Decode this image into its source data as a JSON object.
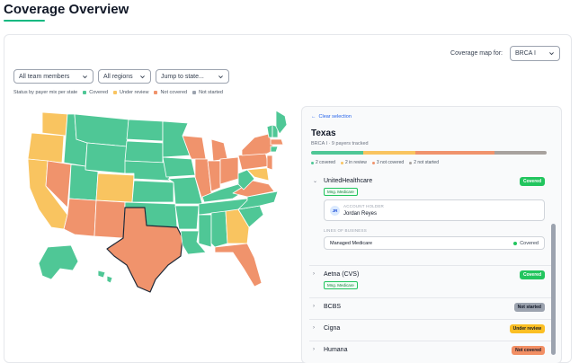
{
  "page": {
    "title": "Coverage Overview"
  },
  "coverage_map": {
    "label": "Coverage map for:",
    "selected": "BRCA I"
  },
  "filters": {
    "team": "All team members",
    "region": "All regions",
    "jump": "Jump to state..."
  },
  "legend": {
    "caption": "Status by payer mix per state",
    "items": [
      {
        "label": "Covered",
        "color": "#4fc796"
      },
      {
        "label": "Under review",
        "color": "#f9c460"
      },
      {
        "label": "Not covered",
        "color": "#f0936c"
      },
      {
        "label": "Not started",
        "color": "#9ca3af"
      }
    ]
  },
  "panel": {
    "clear_label": "Clear selection",
    "state_name": "Texas",
    "subtitle": "BRCA I · 9 payers tracked",
    "summary": [
      {
        "count": 2,
        "label": "2 covered",
        "color": "#4fc796"
      },
      {
        "count": 2,
        "label": "2 in review",
        "color": "#f9c460"
      },
      {
        "count": 3,
        "label": "3 not covered",
        "color": "#f0936c"
      },
      {
        "count": 2,
        "label": "2 not started",
        "color": "#a8a29e"
      }
    ],
    "payers": [
      {
        "name": "UnitedHealthcare",
        "status": "Covered",
        "status_class": "b-covered",
        "expanded": true,
        "tag": "Mng. Medicare",
        "holder_label": "ACCOUNT HOLDER",
        "holder_initials": "JR",
        "holder_name": "Jordan Reyes",
        "lob_label": "LINES OF BUSINESS",
        "lob_name": "Managed Medicare",
        "lob_status": "Covered"
      },
      {
        "name": "Aetna (CVS)",
        "status": "Covered",
        "status_class": "b-covered",
        "expanded": false,
        "tag": "Mng. Medicare"
      },
      {
        "name": "BCBS",
        "status": "Not started",
        "status_class": "b-notstarted",
        "expanded": false
      },
      {
        "name": "Cigna",
        "status": "Under review",
        "status_class": "b-review",
        "expanded": false
      },
      {
        "name": "Humana",
        "status": "Not covered",
        "status_class": "b-notcov",
        "expanded": false
      }
    ]
  }
}
